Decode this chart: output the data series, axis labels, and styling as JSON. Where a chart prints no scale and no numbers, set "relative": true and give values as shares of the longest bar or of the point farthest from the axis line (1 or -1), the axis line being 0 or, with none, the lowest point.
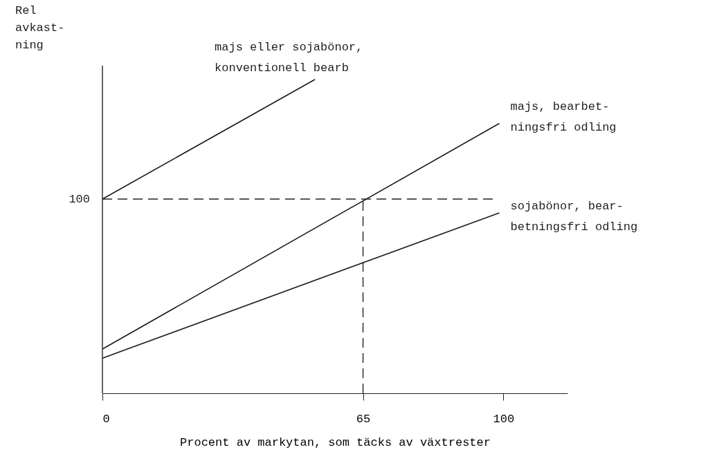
{
  "chart_data": {
    "type": "line",
    "relative": true,
    "xlabel": "Procent av markytan, som täcks av växtrester",
    "ylabel": "Rel\navkast-\nning",
    "xlim": [
      0,
      116
    ],
    "xticks": [
      0,
      65,
      100
    ],
    "series": [
      {
        "name": "majs eller sojabönor,\nkonventionell bearb",
        "color": "#1a1a1a",
        "x": [
          0,
          53
        ],
        "values": [
          0.619,
          1.0
        ]
      },
      {
        "name": "majs, bearbet-\nningsfri odling",
        "color": "#1a1a1a",
        "x": [
          0,
          99
        ],
        "values": [
          0.141,
          0.86
        ]
      },
      {
        "name": "sojabönor, bear-\nbetningsfri odling",
        "color": "#1a1a1a",
        "x": [
          0,
          99
        ],
        "values": [
          0.112,
          0.575
        ]
      }
    ],
    "ref_lines": [
      {
        "axis": "y",
        "value": 0.619,
        "line_style": "dashed"
      },
      {
        "axis": "x",
        "value": 65,
        "line_style": "dashed"
      }
    ],
    "annotations": [
      "100"
    ],
    "line_style": "solid",
    "marker": "none",
    "grid": false,
    "legend": false
  }
}
